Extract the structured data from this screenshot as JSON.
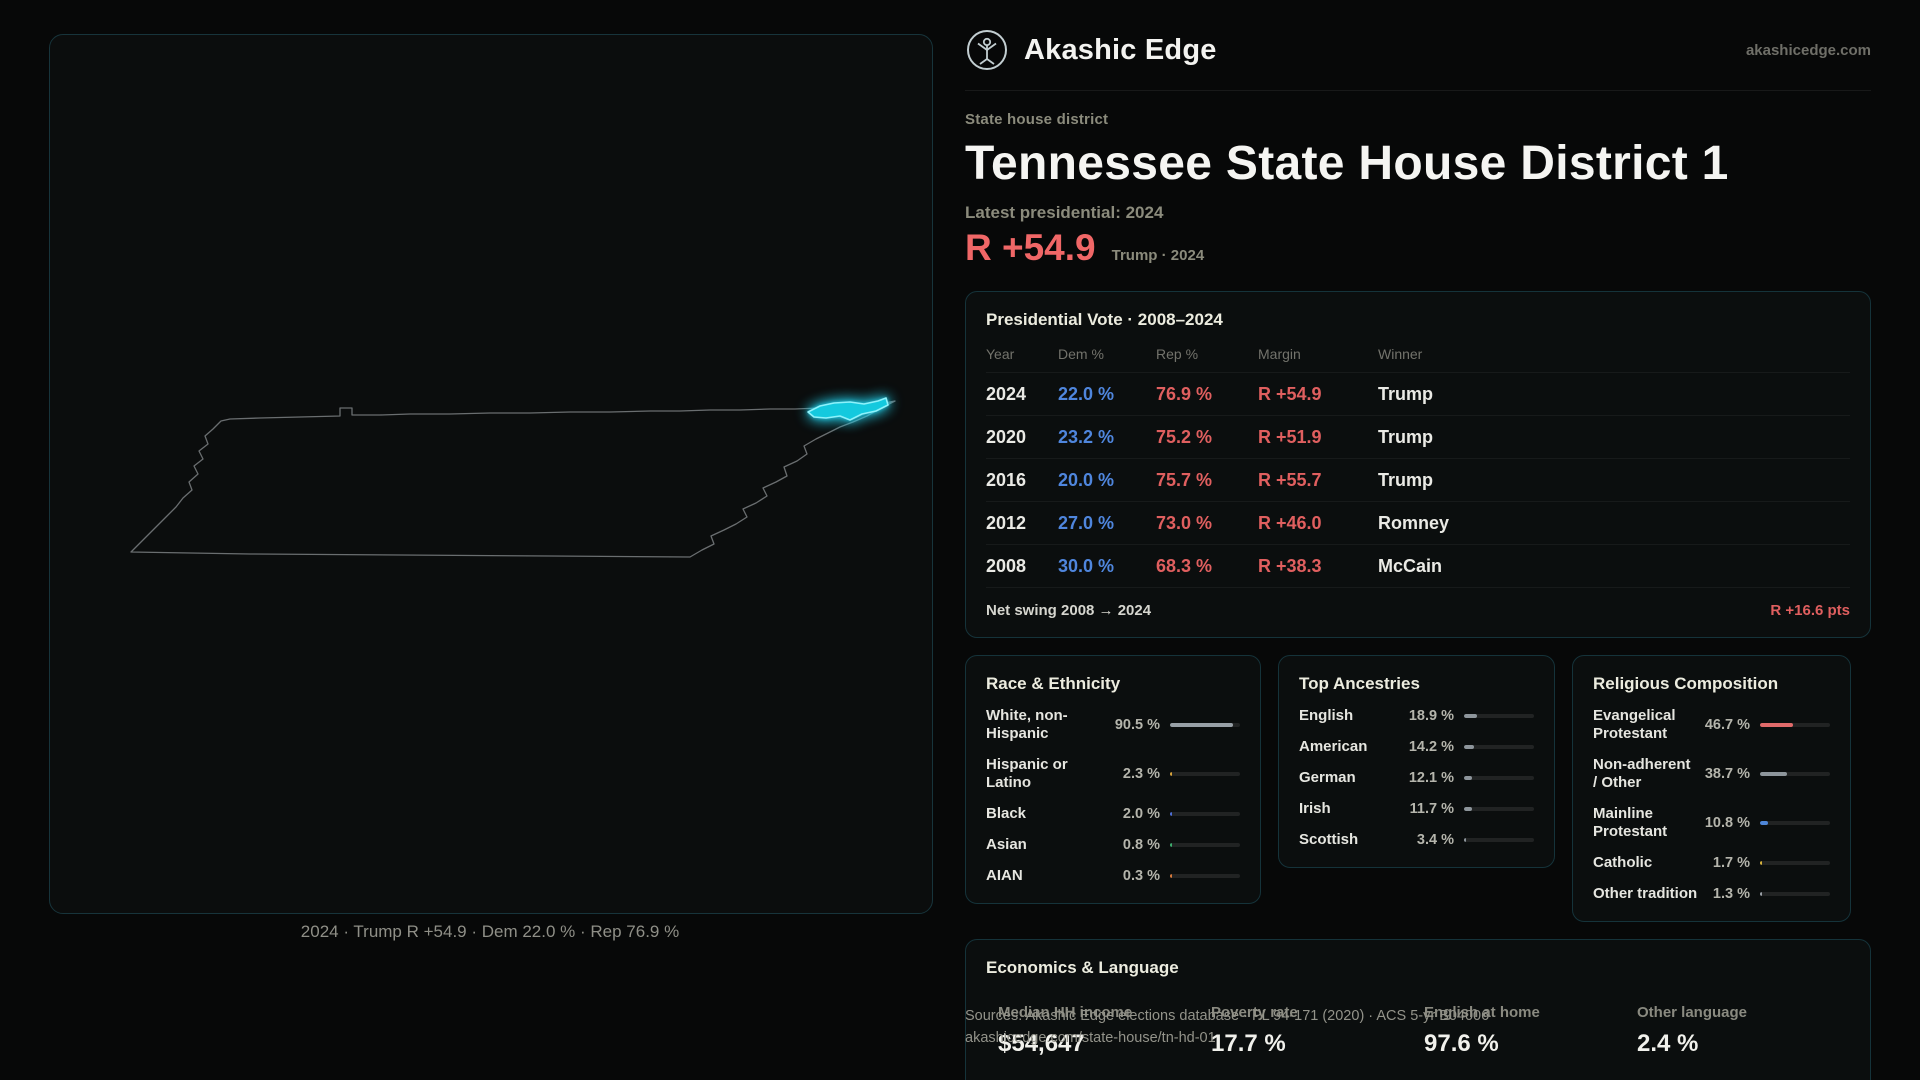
{
  "brand": {
    "name": "Akashic Edge",
    "site": "akashicedge.com"
  },
  "hero": {
    "kicker": "State house district",
    "title": "Tennessee State House District 1",
    "latest": "Latest presidential: 2024",
    "margin": "R +54.9",
    "margin_note": "Trump · 2024"
  },
  "map": {
    "caption": "2024 · Trump R +54.9 · Dem 22.0 % · Rep 76.9 %",
    "district_color": "#22d3ee"
  },
  "presidential": {
    "title": "Presidential Vote · 2008–2024",
    "columns": [
      "Year",
      "Dem %",
      "Rep %",
      "Margin",
      "Winner"
    ],
    "rows": [
      {
        "year": "2024",
        "dem": "22.0 %",
        "rep": "76.9 %",
        "margin": "R +54.9",
        "winner": "Trump"
      },
      {
        "year": "2020",
        "dem": "23.2 %",
        "rep": "75.2 %",
        "margin": "R +51.9",
        "winner": "Trump"
      },
      {
        "year": "2016",
        "dem": "20.0 %",
        "rep": "75.7 %",
        "margin": "R +55.7",
        "winner": "Trump"
      },
      {
        "year": "2012",
        "dem": "27.0 %",
        "rep": "73.0 %",
        "margin": "R +46.0",
        "winner": "Romney"
      },
      {
        "year": "2008",
        "dem": "30.0 %",
        "rep": "68.3 %",
        "margin": "R +38.3",
        "winner": "McCain"
      }
    ],
    "footer_label": "Net swing 2008 → 2024",
    "footer_value": "R +16.6 pts"
  },
  "demographics": {
    "race": {
      "title": "Race & Ethnicity",
      "rows": [
        {
          "label": "White, non-Hispanic",
          "value": "90.5 %",
          "pct": 90.5,
          "color": "#98a0a6"
        },
        {
          "label": "Hispanic or Latino",
          "value": "2.3 %",
          "pct": 2.3,
          "color": "#d8a43c"
        },
        {
          "label": "Black",
          "value": "2.0 %",
          "pct": 2.0,
          "color": "#4e6fd8"
        },
        {
          "label": "Asian",
          "value": "0.8 %",
          "pct": 0.8,
          "color": "#3dae6e"
        },
        {
          "label": "AIAN",
          "value": "0.3 %",
          "pct": 0.3,
          "color": "#d87a3c"
        }
      ]
    },
    "ancestries": {
      "title": "Top Ancestries",
      "rows": [
        {
          "label": "English",
          "value": "18.9 %",
          "pct": 18.9,
          "color": "#8d959b"
        },
        {
          "label": "American",
          "value": "14.2 %",
          "pct": 14.2,
          "color": "#8d959b"
        },
        {
          "label": "German",
          "value": "12.1 %",
          "pct": 12.1,
          "color": "#8d959b"
        },
        {
          "label": "Irish",
          "value": "11.7 %",
          "pct": 11.7,
          "color": "#8d959b"
        },
        {
          "label": "Scottish",
          "value": "3.4 %",
          "pct": 3.4,
          "color": "#8d959b"
        }
      ]
    },
    "religion": {
      "title": "Religious Composition",
      "rows": [
        {
          "label": "Evangelical Protestant",
          "value": "46.7 %",
          "pct": 46.7,
          "color": "#e06a6a"
        },
        {
          "label": "Non-adherent / Other",
          "value": "38.7 %",
          "pct": 38.7,
          "color": "#8d959b"
        },
        {
          "label": "Mainline Protestant",
          "value": "10.8 %",
          "pct": 10.8,
          "color": "#4e86d8"
        },
        {
          "label": "Catholic",
          "value": "1.7 %",
          "pct": 1.7,
          "color": "#d8b33c"
        },
        {
          "label": "Other tradition",
          "value": "1.3 %",
          "pct": 1.3,
          "color": "#9aa0a6"
        }
      ]
    }
  },
  "economics": {
    "title": "Economics & Language",
    "stats": [
      {
        "label": "Median HH income",
        "value": "$54,647"
      },
      {
        "label": "Poverty rate",
        "value": "17.7 %"
      },
      {
        "label": "English at home",
        "value": "97.6 %"
      },
      {
        "label": "Other language",
        "value": "2.4 %"
      }
    ]
  },
  "sources": {
    "line1": "Sources: Akashic Edge elections database · PL 94-171 (2020) · ACS 5-yr B04006",
    "line2": "akashicedge.com/state-house/tn-hd-01"
  }
}
